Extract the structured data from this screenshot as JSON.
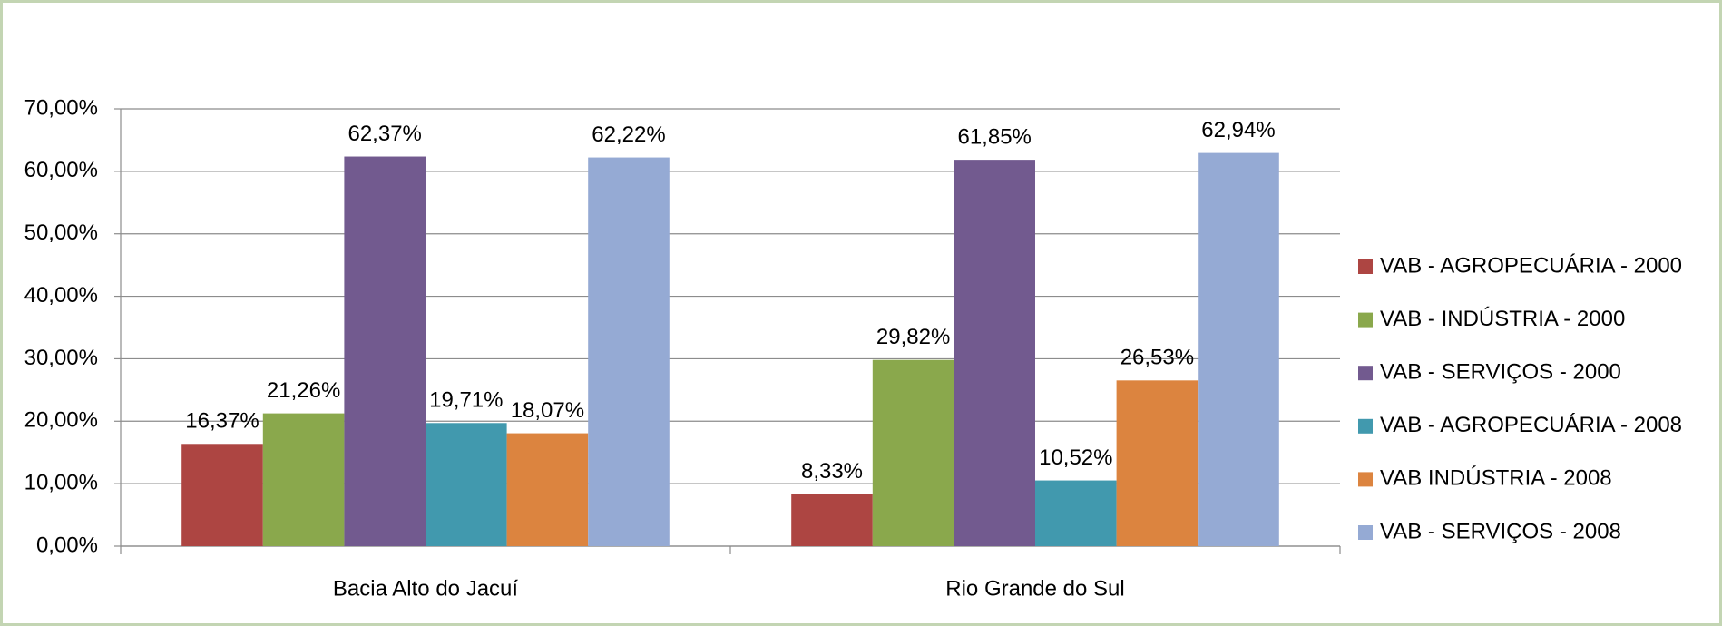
{
  "chart_data": {
    "type": "bar",
    "categories": [
      "Bacia Alto do Jacuí",
      "Rio Grande do Sul"
    ],
    "series": [
      {
        "name": "VAB - AGROPECUÁRIA - 2000",
        "color": "#ad4542",
        "values": [
          16.37,
          8.33
        ],
        "value_labels": [
          "16,37%",
          "8,33%"
        ]
      },
      {
        "name": "VAB - INDÚSTRIA  - 2000",
        "color": "#8aa84c",
        "values": [
          21.26,
          29.82
        ],
        "value_labels": [
          "21,26%",
          "29,82%"
        ]
      },
      {
        "name": "VAB - SERVIÇOS  - 2000",
        "color": "#725a8f",
        "values": [
          62.37,
          61.85
        ],
        "value_labels": [
          "62,37%",
          "61,85%"
        ]
      },
      {
        "name": "VAB - AGROPECUÁRIA - 2008",
        "color": "#4199ae",
        "values": [
          19.71,
          10.52
        ],
        "value_labels": [
          "19,71%",
          "10,52%"
        ]
      },
      {
        "name": "VAB INDÚSTRIA - 2008",
        "color": "#dc843f",
        "values": [
          18.07,
          26.53
        ],
        "value_labels": [
          "18,07%",
          "26,53%"
        ]
      },
      {
        "name": "VAB - SERVIÇOS - 2008",
        "color": "#95aad4",
        "values": [
          62.22,
          62.94
        ],
        "value_labels": [
          "62,22%",
          "62,94%"
        ]
      }
    ],
    "ylim": [
      0,
      70
    ],
    "yticks": [
      {
        "value": 0,
        "label": "0,00%"
      },
      {
        "value": 10,
        "label": "10,00%"
      },
      {
        "value": 20,
        "label": "20,00%"
      },
      {
        "value": 30,
        "label": "30,00%"
      },
      {
        "value": 40,
        "label": "40,00%"
      },
      {
        "value": 50,
        "label": "50,00%"
      },
      {
        "value": 60,
        "label": "60,00%"
      },
      {
        "value": 70,
        "label": "70,00%"
      }
    ],
    "grid": true,
    "legend": "right"
  }
}
